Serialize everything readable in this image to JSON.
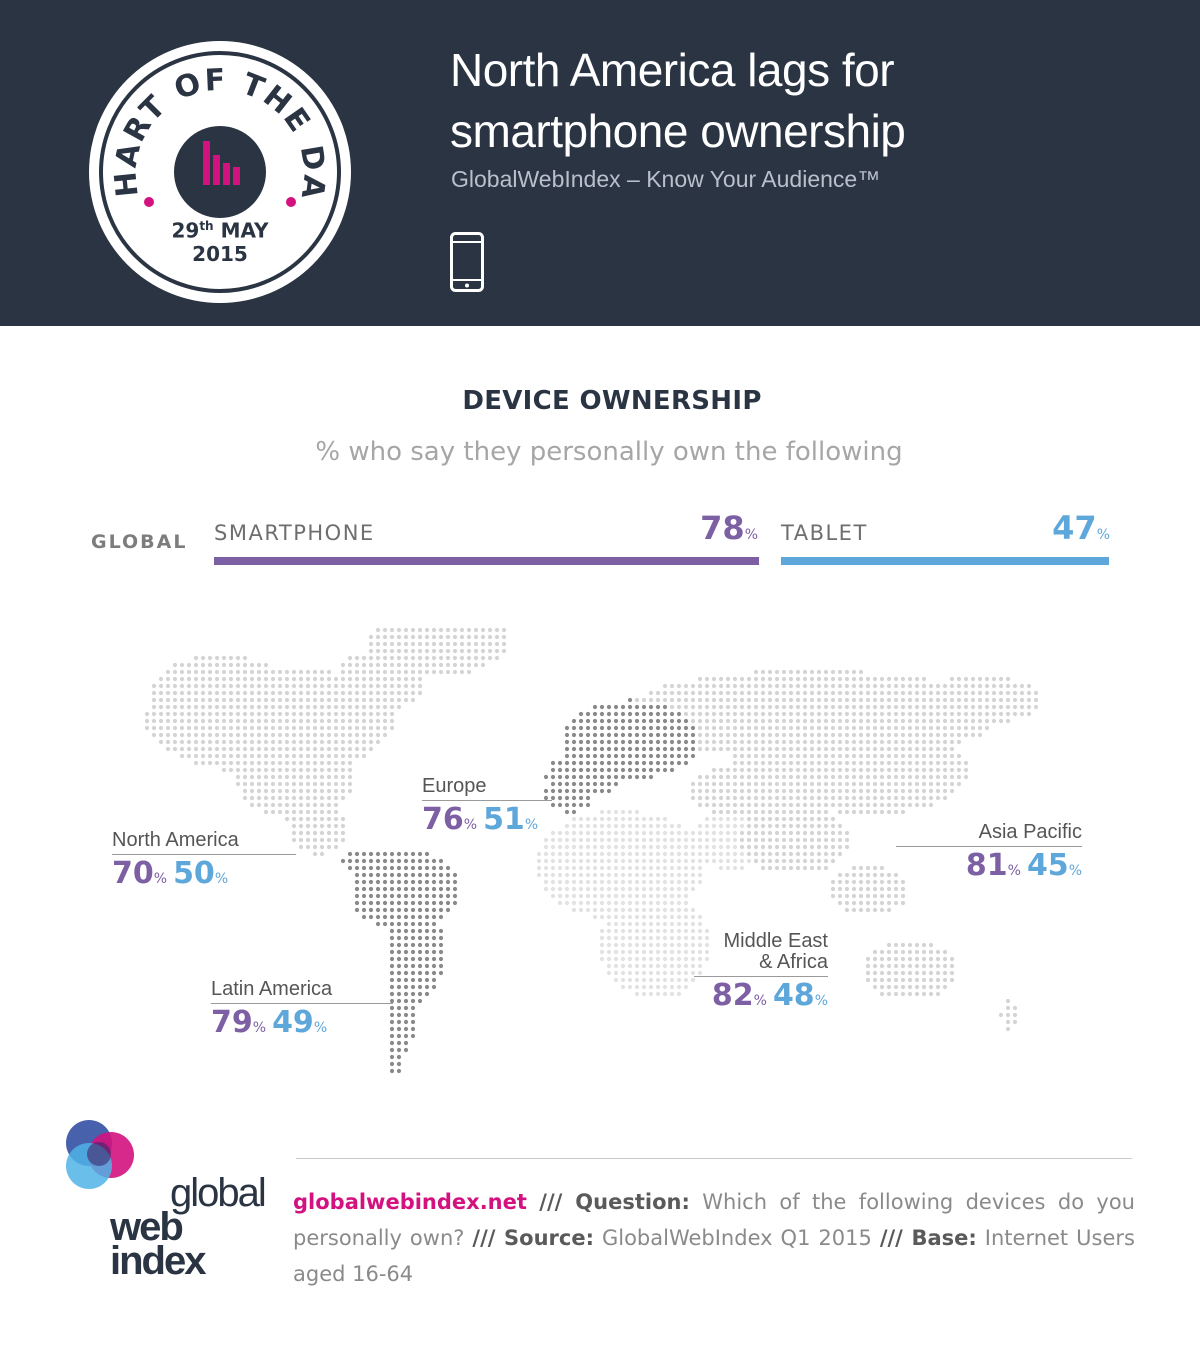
{
  "header": {
    "badge_text": "CHART OF THE DAY",
    "badge_day": "29",
    "badge_suffix": "th",
    "badge_month": "MAY",
    "badge_year": "2015",
    "title_line1": "North America lags for",
    "title_line2": "smartphone ownership",
    "subtitle": "GlobalWebIndex – Know Your Audience™",
    "icon": "smartphone-icon"
  },
  "section": {
    "title": "DEVICE OWNERSHIP",
    "subtitle": "% who say they personally own the following"
  },
  "global": {
    "label": "GLOBAL",
    "smartphone_label": "SMARTPHONE",
    "tablet_label": "TABLET",
    "pct_sign": "%"
  },
  "chart_data": {
    "type": "bar",
    "categories": [
      "SMARTPHONE",
      "TABLET"
    ],
    "series": [
      {
        "name": "GLOBAL",
        "values": [
          78,
          47
        ]
      }
    ],
    "regions": [
      {
        "name": "North America",
        "smartphone": 70,
        "tablet": 50
      },
      {
        "name": "Europe",
        "smartphone": 76,
        "tablet": 51
      },
      {
        "name": "Asia Pacific",
        "smartphone": 81,
        "tablet": 45
      },
      {
        "name": "Latin America",
        "smartphone": 79,
        "tablet": 49
      },
      {
        "name": "Middle East & Africa",
        "smartphone": 82,
        "tablet": 48
      }
    ],
    "region_labels": {
      "north_america": "North America",
      "europe": "Europe",
      "asia_pacific": "Asia Pacific",
      "latin_america": "Latin America",
      "mea_line1": "Middle East",
      "mea_line2": "& Africa"
    },
    "colors": {
      "smartphone": "#7d5fa4",
      "tablet": "#5ea7db"
    }
  },
  "footer": {
    "site": "globalwebindex.net",
    "question_label": "/// Question:",
    "question": "Which of the following devices do you personally own?",
    "source_label": "/// Source:",
    "source": "GlobalWebIndex Q1 2015",
    "base_label": "/// Base:",
    "base": "Internet Users aged 16-64"
  },
  "logo": {
    "line1": "global",
    "line2": "web",
    "line3": "index",
    "colors": [
      "#3d58a8",
      "#d3127f",
      "#4fb3e6"
    ]
  }
}
